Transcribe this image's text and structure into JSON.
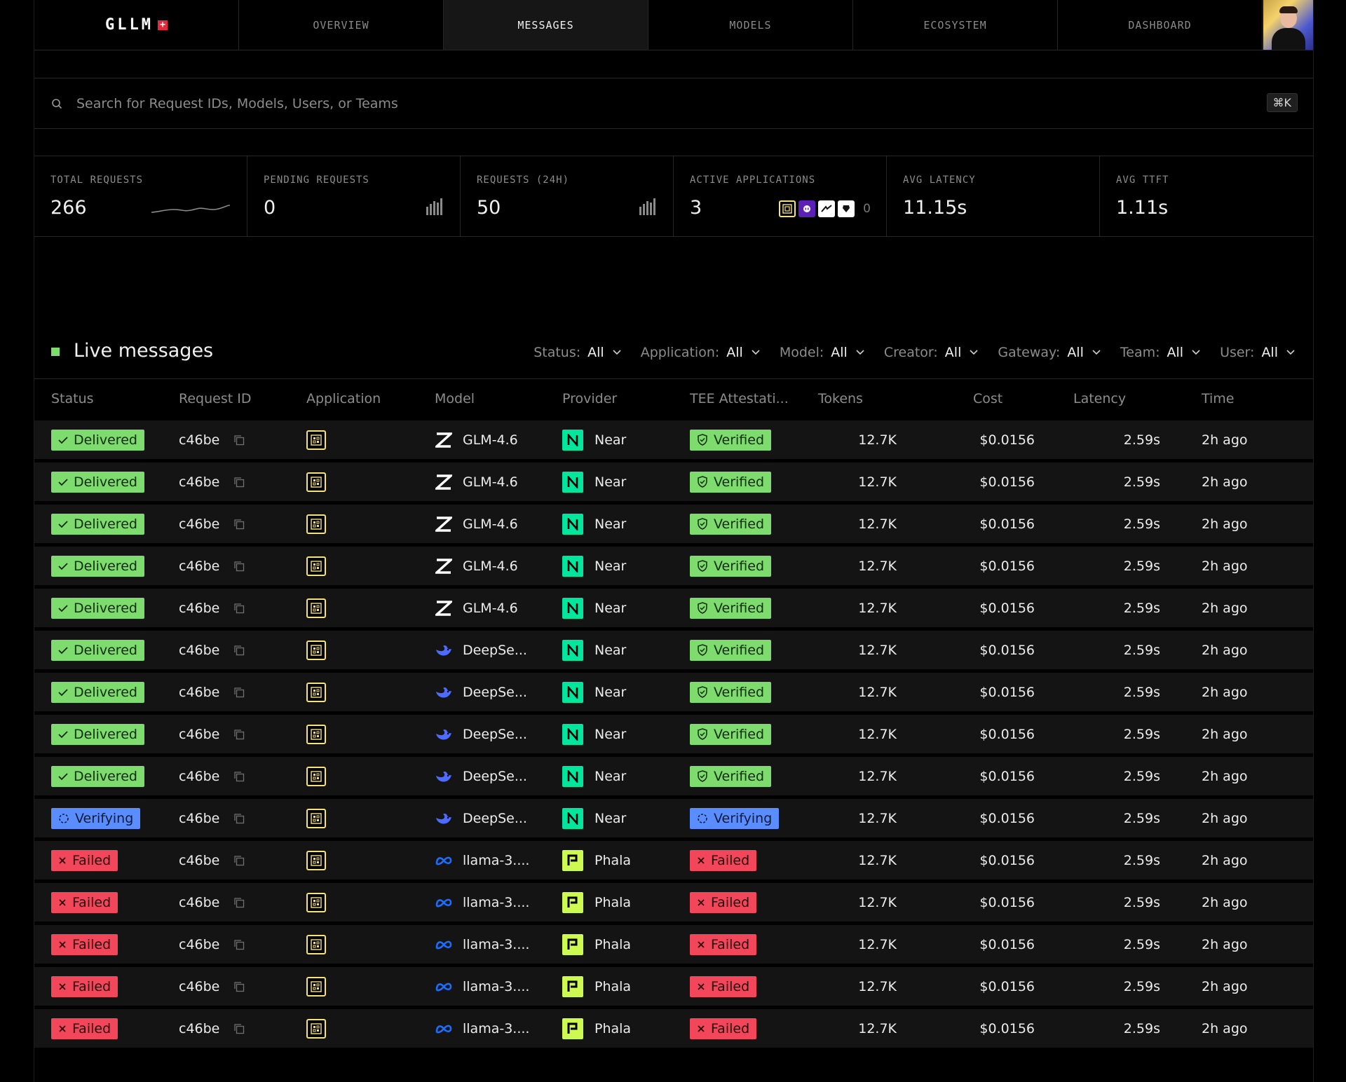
{
  "nav": {
    "logo": "GLLM",
    "logo_badge": "+",
    "tabs": [
      "OVERVIEW",
      "MESSAGES",
      "MODELS",
      "ECOSYSTEM",
      "DASHBOARD"
    ],
    "active_tab": "MESSAGES"
  },
  "search": {
    "placeholder": "Search for Request IDs, Models, Users, or Teams",
    "value": "",
    "shortcut": "⌘K"
  },
  "stats": [
    {
      "label": "TOTAL REQUESTS",
      "value": "266",
      "visual": "sparkline"
    },
    {
      "label": "PENDING REQUESTS",
      "value": "0",
      "visual": "bars"
    },
    {
      "label": "REQUESTS (24H)",
      "value": "50",
      "visual": "bars"
    },
    {
      "label": "ACTIVE APPLICATIONS",
      "value": "3",
      "visual": "apps",
      "extra_count": "0"
    },
    {
      "label": "AVG LATENCY",
      "value": "11.15s"
    },
    {
      "label": "AVG TTFT",
      "value": "1.11s"
    }
  ],
  "live": {
    "title": "Live messages",
    "filters": [
      {
        "label": "Status:",
        "value": "All"
      },
      {
        "label": "Application:",
        "value": "All"
      },
      {
        "label": "Model:",
        "value": "All"
      },
      {
        "label": "Creator:",
        "value": "All"
      },
      {
        "label": "Gateway:",
        "value": "All"
      },
      {
        "label": "Team:",
        "value": "All"
      },
      {
        "label": "User:",
        "value": "All"
      }
    ]
  },
  "table": {
    "columns": [
      "Status",
      "Request ID",
      "Application",
      "Model",
      "Provider",
      "TEE Attestati...",
      "Tokens",
      "Cost",
      "Latency",
      "Time"
    ],
    "colors": {
      "delivered": "#7ddc6d",
      "verifying": "#5a8dff",
      "failed": "#f2475a",
      "near": "#00e79d",
      "phala": "#cdfa50"
    },
    "rows": [
      {
        "status": "Delivered",
        "status_kind": "delivered",
        "request_id": "c46be",
        "model": "GLM-4.6",
        "model_icon": "zhipu-icon",
        "provider": "Near",
        "provider_kind": "near",
        "tee": "Verified",
        "tee_kind": "delivered",
        "tokens": "12.7K",
        "cost": "$0.0156",
        "latency": "2.59s",
        "time": "2h ago"
      },
      {
        "status": "Delivered",
        "status_kind": "delivered",
        "request_id": "c46be",
        "model": "GLM-4.6",
        "model_icon": "zhipu-icon",
        "provider": "Near",
        "provider_kind": "near",
        "tee": "Verified",
        "tee_kind": "delivered",
        "tokens": "12.7K",
        "cost": "$0.0156",
        "latency": "2.59s",
        "time": "2h ago"
      },
      {
        "status": "Delivered",
        "status_kind": "delivered",
        "request_id": "c46be",
        "model": "GLM-4.6",
        "model_icon": "zhipu-icon",
        "provider": "Near",
        "provider_kind": "near",
        "tee": "Verified",
        "tee_kind": "delivered",
        "tokens": "12.7K",
        "cost": "$0.0156",
        "latency": "2.59s",
        "time": "2h ago"
      },
      {
        "status": "Delivered",
        "status_kind": "delivered",
        "request_id": "c46be",
        "model": "GLM-4.6",
        "model_icon": "zhipu-icon",
        "provider": "Near",
        "provider_kind": "near",
        "tee": "Verified",
        "tee_kind": "delivered",
        "tokens": "12.7K",
        "cost": "$0.0156",
        "latency": "2.59s",
        "time": "2h ago"
      },
      {
        "status": "Delivered",
        "status_kind": "delivered",
        "request_id": "c46be",
        "model": "GLM-4.6",
        "model_icon": "zhipu-icon",
        "provider": "Near",
        "provider_kind": "near",
        "tee": "Verified",
        "tee_kind": "delivered",
        "tokens": "12.7K",
        "cost": "$0.0156",
        "latency": "2.59s",
        "time": "2h ago"
      },
      {
        "status": "Delivered",
        "status_kind": "delivered",
        "request_id": "c46be",
        "model": "DeepSe...",
        "model_icon": "deepseek-icon",
        "provider": "Near",
        "provider_kind": "near",
        "tee": "Verified",
        "tee_kind": "delivered",
        "tokens": "12.7K",
        "cost": "$0.0156",
        "latency": "2.59s",
        "time": "2h ago"
      },
      {
        "status": "Delivered",
        "status_kind": "delivered",
        "request_id": "c46be",
        "model": "DeepSe...",
        "model_icon": "deepseek-icon",
        "provider": "Near",
        "provider_kind": "near",
        "tee": "Verified",
        "tee_kind": "delivered",
        "tokens": "12.7K",
        "cost": "$0.0156",
        "latency": "2.59s",
        "time": "2h ago"
      },
      {
        "status": "Delivered",
        "status_kind": "delivered",
        "request_id": "c46be",
        "model": "DeepSe...",
        "model_icon": "deepseek-icon",
        "provider": "Near",
        "provider_kind": "near",
        "tee": "Verified",
        "tee_kind": "delivered",
        "tokens": "12.7K",
        "cost": "$0.0156",
        "latency": "2.59s",
        "time": "2h ago"
      },
      {
        "status": "Delivered",
        "status_kind": "delivered",
        "request_id": "c46be",
        "model": "DeepSe...",
        "model_icon": "deepseek-icon",
        "provider": "Near",
        "provider_kind": "near",
        "tee": "Verified",
        "tee_kind": "delivered",
        "tokens": "12.7K",
        "cost": "$0.0156",
        "latency": "2.59s",
        "time": "2h ago"
      },
      {
        "status": "Verifying",
        "status_kind": "verifying",
        "request_id": "c46be",
        "model": "DeepSe...",
        "model_icon": "deepseek-icon",
        "provider": "Near",
        "provider_kind": "near",
        "tee": "Verifying",
        "tee_kind": "verifying",
        "tokens": "12.7K",
        "cost": "$0.0156",
        "latency": "2.59s",
        "time": "2h ago"
      },
      {
        "status": "Failed",
        "status_kind": "failed",
        "request_id": "c46be",
        "model": "llama-3....",
        "model_icon": "meta-icon",
        "provider": "Phala",
        "provider_kind": "phala",
        "tee": "Failed",
        "tee_kind": "failed",
        "tokens": "12.7K",
        "cost": "$0.0156",
        "latency": "2.59s",
        "time": "2h ago"
      },
      {
        "status": "Failed",
        "status_kind": "failed",
        "request_id": "c46be",
        "model": "llama-3....",
        "model_icon": "meta-icon",
        "provider": "Phala",
        "provider_kind": "phala",
        "tee": "Failed",
        "tee_kind": "failed",
        "tokens": "12.7K",
        "cost": "$0.0156",
        "latency": "2.59s",
        "time": "2h ago"
      },
      {
        "status": "Failed",
        "status_kind": "failed",
        "request_id": "c46be",
        "model": "llama-3....",
        "model_icon": "meta-icon",
        "provider": "Phala",
        "provider_kind": "phala",
        "tee": "Failed",
        "tee_kind": "failed",
        "tokens": "12.7K",
        "cost": "$0.0156",
        "latency": "2.59s",
        "time": "2h ago"
      },
      {
        "status": "Failed",
        "status_kind": "failed",
        "request_id": "c46be",
        "model": "llama-3....",
        "model_icon": "meta-icon",
        "provider": "Phala",
        "provider_kind": "phala",
        "tee": "Failed",
        "tee_kind": "failed",
        "tokens": "12.7K",
        "cost": "$0.0156",
        "latency": "2.59s",
        "time": "2h ago"
      },
      {
        "status": "Failed",
        "status_kind": "failed",
        "request_id": "c46be",
        "model": "llama-3....",
        "model_icon": "meta-icon",
        "provider": "Phala",
        "provider_kind": "phala",
        "tee": "Failed",
        "tee_kind": "failed",
        "tokens": "12.7K",
        "cost": "$0.0156",
        "latency": "2.59s",
        "time": "2h ago"
      }
    ]
  }
}
